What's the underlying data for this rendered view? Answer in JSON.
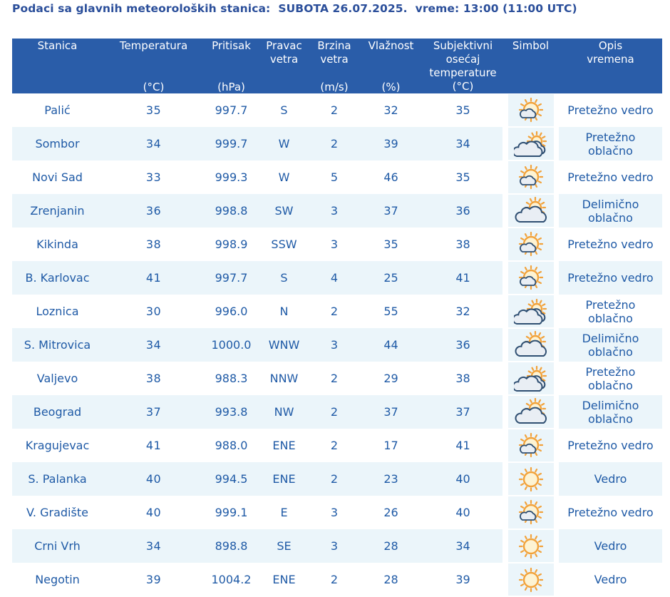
{
  "header": {
    "title_prefix": "Podaci sa glavnih meteoroloških stanica:",
    "day_date": "SUBOTA 26.07.2025.",
    "time_text": "vreme: 13:00 (11:00 UTC)"
  },
  "columns": [
    {
      "label": "Stanica",
      "unit": ""
    },
    {
      "label": "Temperatura",
      "unit": "(°C)"
    },
    {
      "label": "Pritisak",
      "unit": "(hPa)"
    },
    {
      "label": "Pravac\nvetra",
      "unit": ""
    },
    {
      "label": "Brzina\nvetra",
      "unit": "(m/s)"
    },
    {
      "label": "Vlažnost",
      "unit": "(%)"
    },
    {
      "label": "Subjektivni\nosećaj\ntemperature\n(°C)",
      "unit": ""
    },
    {
      "label": "Simbol",
      "unit": ""
    },
    {
      "label": "Opis\nvremena",
      "unit": ""
    }
  ],
  "rows": [
    {
      "station": "Palić",
      "temp": "35",
      "pressure": "997.7",
      "wind_dir": "S",
      "wind_speed": "2",
      "humidity": "32",
      "feels": "35",
      "icon": "mostly-clear-icon",
      "desc": "Pretežno vedro"
    },
    {
      "station": "Sombor",
      "temp": "34",
      "pressure": "999.7",
      "wind_dir": "W",
      "wind_speed": "2",
      "humidity": "39",
      "feels": "34",
      "icon": "mostly-cloudy-icon",
      "desc": "Pretežno\noblačno"
    },
    {
      "station": "Novi Sad",
      "temp": "33",
      "pressure": "999.3",
      "wind_dir": "W",
      "wind_speed": "5",
      "humidity": "46",
      "feels": "35",
      "icon": "mostly-clear-icon",
      "desc": "Pretežno vedro"
    },
    {
      "station": "Zrenjanin",
      "temp": "36",
      "pressure": "998.8",
      "wind_dir": "SW",
      "wind_speed": "3",
      "humidity": "37",
      "feels": "36",
      "icon": "partly-cloudy-icon",
      "desc": "Delimično\noblačno"
    },
    {
      "station": "Kikinda",
      "temp": "38",
      "pressure": "998.9",
      "wind_dir": "SSW",
      "wind_speed": "3",
      "humidity": "35",
      "feels": "38",
      "icon": "mostly-clear-icon",
      "desc": "Pretežno vedro"
    },
    {
      "station": "B. Karlovac",
      "temp": "41",
      "pressure": "997.7",
      "wind_dir": "S",
      "wind_speed": "4",
      "humidity": "25",
      "feels": "41",
      "icon": "mostly-clear-icon",
      "desc": "Pretežno vedro"
    },
    {
      "station": "Loznica",
      "temp": "30",
      "pressure": "996.0",
      "wind_dir": "N",
      "wind_speed": "2",
      "humidity": "55",
      "feels": "32",
      "icon": "mostly-cloudy-icon",
      "desc": "Pretežno\noblačno"
    },
    {
      "station": "S. Mitrovica",
      "temp": "34",
      "pressure": "1000.0",
      "wind_dir": "WNW",
      "wind_speed": "3",
      "humidity": "44",
      "feels": "36",
      "icon": "partly-cloudy-icon",
      "desc": "Delimično\noblačno"
    },
    {
      "station": "Valjevo",
      "temp": "38",
      "pressure": "988.3",
      "wind_dir": "NNW",
      "wind_speed": "2",
      "humidity": "29",
      "feels": "38",
      "icon": "mostly-cloudy-icon",
      "desc": "Pretežno\noblačno"
    },
    {
      "station": "Beograd",
      "temp": "37",
      "pressure": "993.8",
      "wind_dir": "NW",
      "wind_speed": "2",
      "humidity": "37",
      "feels": "37",
      "icon": "partly-cloudy-icon",
      "desc": "Delimično\noblačno"
    },
    {
      "station": "Kragujevac",
      "temp": "41",
      "pressure": "988.0",
      "wind_dir": "ENE",
      "wind_speed": "2",
      "humidity": "17",
      "feels": "41",
      "icon": "mostly-clear-icon",
      "desc": "Pretežno vedro"
    },
    {
      "station": "S. Palanka",
      "temp": "40",
      "pressure": "994.5",
      "wind_dir": "ENE",
      "wind_speed": "2",
      "humidity": "23",
      "feels": "40",
      "icon": "clear-sun-icon",
      "desc": "Vedro"
    },
    {
      "station": "V. Gradište",
      "temp": "40",
      "pressure": "999.1",
      "wind_dir": "E",
      "wind_speed": "3",
      "humidity": "26",
      "feels": "40",
      "icon": "mostly-clear-icon",
      "desc": "Pretežno vedro"
    },
    {
      "station": "Crni Vrh",
      "temp": "34",
      "pressure": "898.8",
      "wind_dir": "SE",
      "wind_speed": "3",
      "humidity": "28",
      "feels": "34",
      "icon": "clear-sun-icon",
      "desc": "Vedro"
    },
    {
      "station": "Negotin",
      "temp": "39",
      "pressure": "1004.2",
      "wind_dir": "ENE",
      "wind_speed": "2",
      "humidity": "28",
      "feels": "39",
      "icon": "clear-sun-icon",
      "desc": "Vedro"
    }
  ],
  "colors": {
    "header_bg": "#2a5da9",
    "title_text": "#2a4e9a",
    "body_text": "#1f5aa6",
    "feels_text": "#f39a28",
    "alt_row": "#ebf5fa"
  }
}
